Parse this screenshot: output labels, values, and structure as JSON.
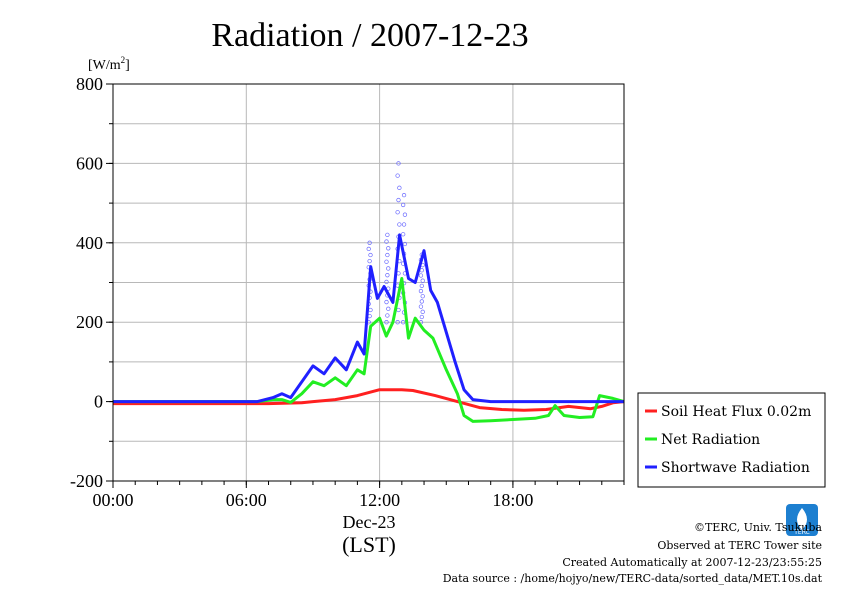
{
  "chart_data": {
    "type": "line",
    "title": "Radiation / 2007-12-23",
    "ylabel_unit": "[W/m",
    "ylabel_unit_sup": "2",
    "ylabel_unit_close": "]",
    "ylim": [
      -200,
      800
    ],
    "yticks": [
      -200,
      0,
      200,
      400,
      600,
      800
    ],
    "xlim": [
      0,
      23.0
    ],
    "xticks": [
      {
        "hour": 0,
        "label": "00:00"
      },
      {
        "hour": 6,
        "label": "06:00"
      },
      {
        "hour": 12,
        "label": "12:00"
      },
      {
        "hour": 18,
        "label": "18:00"
      }
    ],
    "date_label": "Dec-23",
    "timezone_label": "(LST)",
    "grid": true,
    "legend_position": "right-bottom",
    "series": [
      {
        "name": "Soil Heat Flux 0.02m",
        "color": "#ff2020",
        "points": [
          [
            0,
            -5
          ],
          [
            7,
            -5
          ],
          [
            8.5,
            -3
          ],
          [
            9,
            0
          ],
          [
            10,
            5
          ],
          [
            11,
            15
          ],
          [
            12,
            30
          ],
          [
            13,
            30
          ],
          [
            13.5,
            28
          ],
          [
            14.5,
            15
          ],
          [
            15.5,
            0
          ],
          [
            16.5,
            -15
          ],
          [
            17.5,
            -20
          ],
          [
            18.5,
            -22
          ],
          [
            19.5,
            -20
          ],
          [
            20.5,
            -12
          ],
          [
            21.5,
            -18
          ],
          [
            22,
            -12
          ],
          [
            22.5,
            -3
          ],
          [
            23,
            0
          ]
        ]
      },
      {
        "name": "Net Radiation",
        "color": "#22ee22",
        "points": [
          [
            0,
            0
          ],
          [
            6.5,
            0
          ],
          [
            7.2,
            5
          ],
          [
            7.6,
            5
          ],
          [
            8,
            -2
          ],
          [
            8.5,
            20
          ],
          [
            9,
            50
          ],
          [
            9.5,
            40
          ],
          [
            10,
            60
          ],
          [
            10.5,
            40
          ],
          [
            11,
            80
          ],
          [
            11.3,
            70
          ],
          [
            11.6,
            190
          ],
          [
            12,
            210
          ],
          [
            12.3,
            165
          ],
          [
            12.6,
            200
          ],
          [
            13,
            310
          ],
          [
            13.3,
            160
          ],
          [
            13.6,
            210
          ],
          [
            14,
            180
          ],
          [
            14.4,
            160
          ],
          [
            15,
            80
          ],
          [
            15.5,
            20
          ],
          [
            15.8,
            -35
          ],
          [
            16.2,
            -50
          ],
          [
            17,
            -48
          ],
          [
            18,
            -45
          ],
          [
            19,
            -42
          ],
          [
            19.6,
            -35
          ],
          [
            19.9,
            -10
          ],
          [
            20.3,
            -35
          ],
          [
            21,
            -40
          ],
          [
            21.6,
            -38
          ],
          [
            21.9,
            15
          ],
          [
            22.5,
            8
          ],
          [
            23,
            0
          ]
        ]
      },
      {
        "name": "Shortwave Radiation",
        "color": "#2020ff",
        "points": [
          [
            0,
            0
          ],
          [
            6.5,
            0
          ],
          [
            7.2,
            10
          ],
          [
            7.6,
            20
          ],
          [
            8,
            10
          ],
          [
            8.5,
            50
          ],
          [
            9,
            90
          ],
          [
            9.5,
            70
          ],
          [
            10,
            110
          ],
          [
            10.5,
            80
          ],
          [
            11,
            150
          ],
          [
            11.3,
            120
          ],
          [
            11.6,
            340
          ],
          [
            11.9,
            260
          ],
          [
            12.2,
            290
          ],
          [
            12.6,
            250
          ],
          [
            12.9,
            420
          ],
          [
            13.3,
            310
          ],
          [
            13.6,
            300
          ],
          [
            14,
            380
          ],
          [
            14.3,
            280
          ],
          [
            14.6,
            250
          ],
          [
            15.4,
            100
          ],
          [
            15.8,
            30
          ],
          [
            16.2,
            5
          ],
          [
            17,
            0
          ],
          [
            18,
            0
          ],
          [
            20,
            0
          ],
          [
            22,
            0
          ],
          [
            23,
            0
          ]
        ]
      }
    ],
    "spikes": [
      {
        "x": 11.55,
        "top": 400
      },
      {
        "x": 12.35,
        "top": 420
      },
      {
        "x": 12.85,
        "top": 600
      },
      {
        "x": 13.1,
        "top": 520
      },
      {
        "x": 13.9,
        "top": 370
      }
    ]
  },
  "credits": {
    "copyright": "©TERC, Univ. Tsukuba",
    "observed": "Observed at TERC Tower site",
    "created": "Created Automatically at 2007-12-23/23:55:25",
    "source": "Data source : /home/hojyo/new/TERC-data/sorted_data/MET.10s.dat",
    "logo_text": "TERC"
  }
}
